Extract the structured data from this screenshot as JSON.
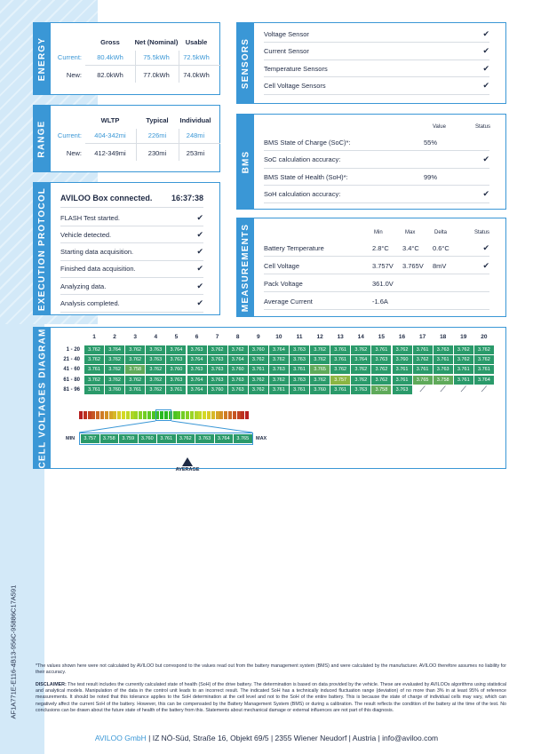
{
  "document_id": "AF1A771E-E116-4B13-956C-95886C17A591",
  "colors": {
    "accent": "#3a97d6",
    "cell_green": "#2a9a6a",
    "text": "#1f2a44"
  },
  "energy": {
    "label": "ENERGY",
    "headers": [
      "Gross",
      "Net (Nominal)",
      "Usable"
    ],
    "rows": [
      {
        "label": "Current:",
        "values": [
          "80.4kWh",
          "75.5kWh",
          "72.5kWh"
        ]
      },
      {
        "label": "New:",
        "values": [
          "82.0kWh",
          "77.0kWh",
          "74.0kWh"
        ]
      }
    ]
  },
  "range": {
    "label": "RANGE",
    "headers": [
      "WLTP",
      "Typical",
      "Individual"
    ],
    "rows": [
      {
        "label": "Current:",
        "values": [
          "404-342mi",
          "226mi",
          "248mi"
        ]
      },
      {
        "label": "New:",
        "values": [
          "412-349mi",
          "230mi",
          "253mi"
        ]
      }
    ]
  },
  "execution": {
    "label": "EXECUTION PROTOCOL",
    "title": "AVILOO Box connected.",
    "time": "16:37:38",
    "steps": [
      "FLASH Test started.",
      "Vehicle detected.",
      "Starting data acquisition.",
      "Finished data acquisition.",
      "Analyzing data.",
      "Analysis completed."
    ]
  },
  "sensors": {
    "label": "SENSORS",
    "items": [
      "Voltage Sensor",
      "Current Sensor",
      "Temperature Sensors",
      "Cell Voltage Sensors"
    ]
  },
  "bms": {
    "label": "BMS",
    "headers": [
      "Value",
      "Status"
    ],
    "rows": [
      {
        "label": "BMS State of Charge (SoC)*:",
        "value": "55%",
        "ok": false
      },
      {
        "label": "SoC calculation accuracy:",
        "value": "",
        "ok": true
      },
      {
        "label": "BMS State of Health (SoH)*:",
        "value": "99%",
        "ok": false
      },
      {
        "label": "SoH calculation accuracy:",
        "value": "",
        "ok": true
      }
    ]
  },
  "measurements": {
    "label": "MEASUREMENTS",
    "headers": [
      "Min",
      "Max",
      "Delta",
      "Status"
    ],
    "rows": [
      {
        "label": "Battery Temperature",
        "min": "2.8°C",
        "max": "3.4°C",
        "delta": "0.6°C",
        "ok": true
      },
      {
        "label": "Cell Voltage",
        "min": "3.757V",
        "max": "3.765V",
        "delta": "8mV",
        "ok": true
      },
      {
        "label": "Pack Voltage",
        "min": "361.0V",
        "max": "",
        "delta": "",
        "ok": false
      },
      {
        "label": "Average Current",
        "min": "-1.6A",
        "max": "",
        "delta": "",
        "ok": false
      }
    ]
  },
  "cells": {
    "label": "CELL VOLTAGES DIAGRAM",
    "columns": [
      "1",
      "2",
      "3",
      "4",
      "5",
      "6",
      "7",
      "8",
      "9",
      "10",
      "11",
      "12",
      "13",
      "14",
      "15",
      "16",
      "17",
      "18",
      "19",
      "20"
    ],
    "row_labels": [
      "1 - 20",
      "21 - 40",
      "41 - 60",
      "61 - 80",
      "81 - 96"
    ],
    "values": [
      [
        "3.762",
        "3.764",
        "3.762",
        "3.763",
        "3.764",
        "3.763",
        "3.762",
        "3.762",
        "3.760",
        "3.764",
        "3.763",
        "3.762",
        "3.761",
        "3.762",
        "3.761",
        "3.762",
        "3.761",
        "3.763",
        "3.762",
        "3.762"
      ],
      [
        "3.762",
        "3.762",
        "3.762",
        "3.763",
        "3.763",
        "3.764",
        "3.763",
        "3.764",
        "3.762",
        "3.762",
        "3.763",
        "3.762",
        "3.761",
        "3.764",
        "3.763",
        "3.760",
        "3.762",
        "3.761",
        "3.762",
        "3.762"
      ],
      [
        "3.761",
        "3.762",
        "3.758",
        "3.762",
        "3.760",
        "3.763",
        "3.763",
        "3.760",
        "3.761",
        "3.763",
        "3.761",
        "3.765",
        "3.762",
        "3.762",
        "3.762",
        "3.761",
        "3.761",
        "3.763",
        "3.761",
        "3.761"
      ],
      [
        "3.762",
        "3.762",
        "3.762",
        "3.762",
        "3.763",
        "3.764",
        "3.763",
        "3.763",
        "3.762",
        "3.762",
        "3.763",
        "3.762",
        "3.757",
        "3.762",
        "3.762",
        "3.761",
        "3.765",
        "3.758",
        "3.761",
        "3.764"
      ],
      [
        "3.761",
        "3.760",
        "3.761",
        "3.762",
        "3.761",
        "3.764",
        "3.760",
        "3.763",
        "3.762",
        "3.761",
        "3.761",
        "3.760",
        "3.761",
        "3.763",
        "3.758",
        "3.763",
        null,
        null,
        null,
        null
      ]
    ],
    "scale": [
      "3.757",
      "3.758",
      "3.759",
      "3.760",
      "3.761",
      "3.762",
      "3.763",
      "3.764",
      "3.765"
    ],
    "min_label": "MIN",
    "max_label": "MAX",
    "average_label": "AVERAGE",
    "average_value": "3.762"
  },
  "footer": {
    "note": "*The values shown here were not calculated by AVILOO but correspond to the values read out from the battery management system (BMS) and were calculated by the manufacturer. AVILOO therefore assumes no liability for their accuracy.",
    "disclaimer_label": "DISCLAIMER:",
    "disclaimer": " The test result includes the currently calculated state of health (SoH) of the drive battery. The determination is based on data provided by the vehicle. These are evaluated by AVILOOs algorithms using statistical and analytical models. Manipulation of the data in the control unit leads to an incorrect result. The indicated SoH has a technically induced fluctuation range (deviation) of no more than 3% in at least 95% of reference measurements. It should be noted that this tolerance applies to the SoH determination at the cell level and not to the SoH of the entire battery. This is because the state of charge of individual cells may vary, which can negatively affect the current SoH of the battery. However, this can be compensated by the Battery Management System (BMS) or during a calibration. The result reflects the condition of the battery at the time of the test. No conclusions can be drawn about the future state of health of the battery from this. Statements about mechanical damage or external influences are not part of this diagnosis.",
    "company": "AVILOO GmbH",
    "address": " | IZ NÖ-Süd, Straße 16, Objekt 69/5 | 2355 Wiener Neudorf | Austria | info@aviloo.com"
  }
}
